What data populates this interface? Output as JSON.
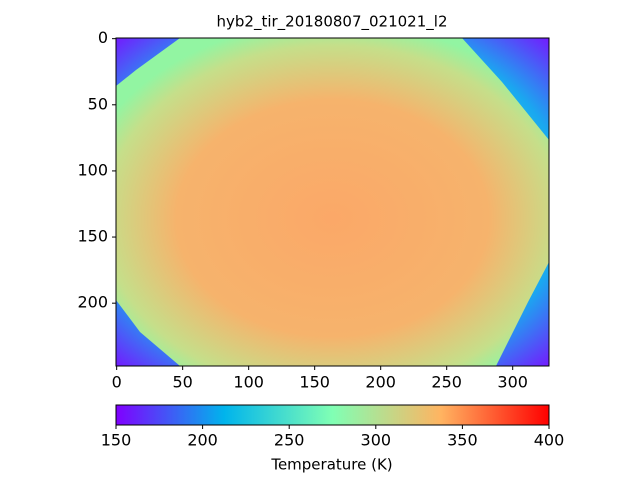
{
  "chart_data": {
    "type": "heatmap",
    "title": "hyb2_tir_20180807_021021_l2",
    "xlim": [
      -0.5,
      327.5
    ],
    "ylim": [
      247.5,
      -0.5
    ],
    "xticks": [
      0,
      50,
      100,
      150,
      200,
      250,
      300
    ],
    "yticks": [
      0,
      50,
      100,
      150,
      200
    ],
    "colorbar": {
      "label": "Temperature (K)",
      "lim": [
        150,
        400
      ],
      "ticks": [
        150,
        200,
        250,
        300,
        350,
        400
      ]
    }
  }
}
